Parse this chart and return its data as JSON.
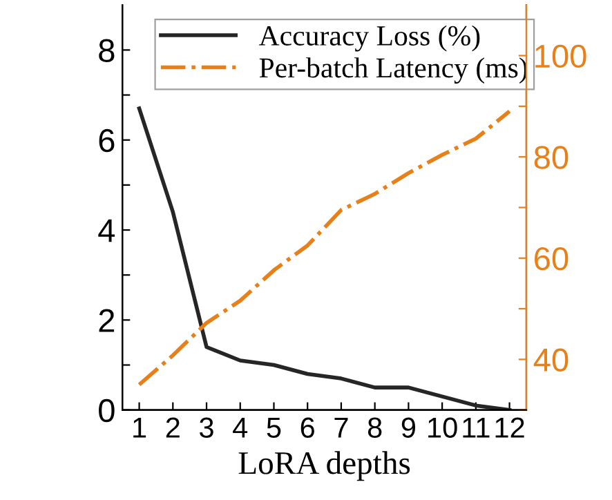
{
  "chart_data": {
    "type": "line",
    "xlabel": "LoRA depths",
    "x": [
      1,
      2,
      3,
      4,
      5,
      6,
      7,
      8,
      9,
      10,
      11,
      12
    ],
    "xlim": [
      0.5,
      12.5
    ],
    "xticks": [
      1,
      2,
      3,
      4,
      5,
      6,
      7,
      8,
      9,
      10,
      11,
      12
    ],
    "ylim": [
      0,
      9
    ],
    "yticks": [
      0,
      {
        "value": 1,
        "label": null
      },
      2,
      {
        "value": 3,
        "label": null
      },
      4,
      {
        "value": 5,
        "label": null
      },
      6,
      {
        "value": 7,
        "label": null
      },
      8
    ],
    "y2lim": [
      30,
      110
    ],
    "y2ticks": [
      {
        "value": 30,
        "label": null
      },
      40,
      {
        "value": 50,
        "label": null
      },
      60,
      {
        "value": 70,
        "label": null
      },
      80,
      {
        "value": 90,
        "label": null
      },
      100
    ],
    "legend": "top",
    "grid": false,
    "series": [
      {
        "name": "Accuracy Loss (%)",
        "color": "#262626",
        "line_style": "solid",
        "values": [
          6.7,
          4.4,
          1.4,
          1.1,
          1.0,
          0.8,
          0.7,
          0.5,
          0.5,
          0.3,
          0.1,
          0.0
        ]
      },
      {
        "name": "Per-batch Latency (ms)",
        "color": "#e8801a",
        "line_style": "dashdot",
        "axis": "y2",
        "values": [
          35.0,
          40.8,
          47.2,
          51.6,
          57.6,
          62.5,
          69.5,
          72.7,
          76.8,
          80.4,
          83.6,
          89.0
        ]
      }
    ]
  }
}
